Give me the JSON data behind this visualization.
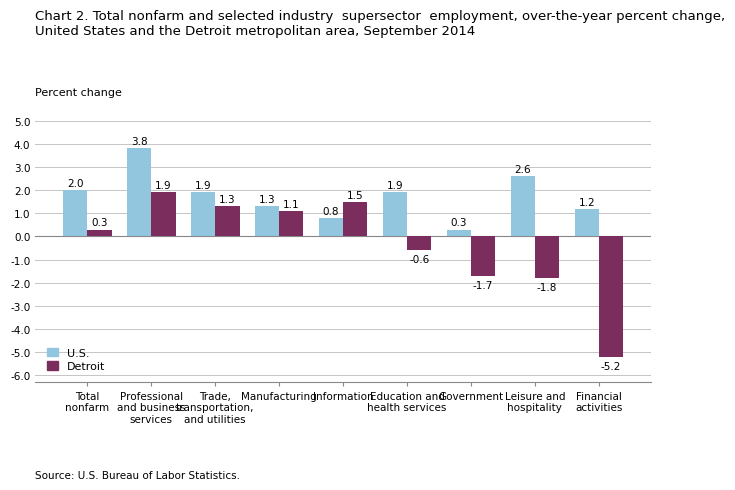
{
  "title_line1": "Chart 2. Total nonfarm and selected industry  supersector  employment, over-the-year percent change,",
  "title_line2": "United States and the Detroit metropolitan area, September 2014",
  "ylabel": "Percent change",
  "source": "Source: U.S. Bureau of Labor Statistics.",
  "categories": [
    "Total\nnonfarm",
    "Professional\nand business\nservices",
    "Trade,\ntransportation,\nand utilities",
    "Manufacturing",
    "Information",
    "Education and\nhealth services",
    "Government",
    "Leisure and\nhospitality",
    "Financial\nactivities"
  ],
  "us_values": [
    2.0,
    3.8,
    1.9,
    1.3,
    0.8,
    1.9,
    0.3,
    2.6,
    1.2
  ],
  "detroit_values": [
    0.3,
    1.9,
    1.3,
    1.1,
    1.5,
    -0.6,
    -1.7,
    -1.8,
    -5.2
  ],
  "us_color": "#92C5DE",
  "detroit_color": "#7B2D5E",
  "ylim": [
    -6.3,
    5.5
  ],
  "yticks": [
    -6.0,
    -5.0,
    -4.0,
    -3.0,
    -2.0,
    -1.0,
    0.0,
    1.0,
    2.0,
    3.0,
    4.0,
    5.0
  ],
  "bar_width": 0.38,
  "title_fontsize": 9.5,
  "label_fontsize": 8,
  "tick_fontsize": 7.5,
  "value_fontsize": 7.5,
  "legend_fontsize": 8
}
